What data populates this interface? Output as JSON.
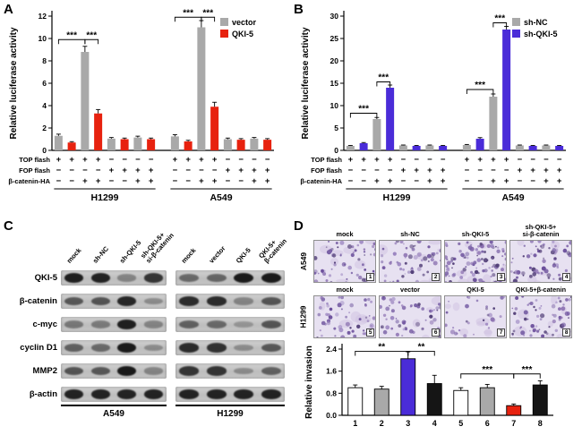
{
  "panelA": {
    "label": "A"
  },
  "panelB": {
    "label": "B"
  },
  "panelC": {
    "label": "C",
    "row_labels": [
      "QKI-5",
      "β-catenin",
      "c-myc",
      "cyclin D1",
      "MMP2",
      "β-actin"
    ],
    "groups": [
      {
        "cell_line": "A549",
        "lane_labels": [
          [
            "mock"
          ],
          [
            "sh-NC"
          ],
          [
            "sh-QKI-5"
          ],
          [
            "sh-QKI-5+",
            "si-β-catenin"
          ]
        ],
        "band_intensity": [
          [
            0.92,
            0.9,
            0.35,
            0.8
          ],
          [
            0.6,
            0.62,
            0.88,
            0.3
          ],
          [
            0.42,
            0.4,
            0.92,
            0.35
          ],
          [
            0.55,
            0.5,
            0.95,
            0.3
          ],
          [
            0.62,
            0.6,
            0.95,
            0.35
          ],
          [
            0.9,
            0.9,
            0.9,
            0.9
          ]
        ]
      },
      {
        "cell_line": "H1299",
        "lane_labels": [
          [
            "mock"
          ],
          [
            "vector"
          ],
          [
            "QKI-5"
          ],
          [
            "QKI-5+",
            "β-catenin"
          ]
        ],
        "band_intensity": [
          [
            0.5,
            0.52,
            0.95,
            0.95
          ],
          [
            0.85,
            0.85,
            0.35,
            0.62
          ],
          [
            0.55,
            0.5,
            0.25,
            0.62
          ],
          [
            0.85,
            0.82,
            0.3,
            0.6
          ],
          [
            0.8,
            0.8,
            0.3,
            0.55
          ],
          [
            0.9,
            0.9,
            0.9,
            0.9
          ]
        ]
      }
    ]
  },
  "panelD": {
    "label": "D",
    "rows": [
      {
        "cell_line": "A549",
        "conditions": [
          [
            "mock"
          ],
          [
            "sh-NC"
          ],
          [
            "sh-QKI-5"
          ],
          [
            "sh-QKI-5+",
            "si-β-catenin"
          ]
        ],
        "numbers": [
          "1",
          "2",
          "3",
          "4"
        ]
      },
      {
        "cell_line": "H1299",
        "conditions": [
          [
            "mock"
          ],
          [
            "vector"
          ],
          [
            "QKI-5"
          ],
          [
            "QKI-5+β-catenin"
          ]
        ],
        "numbers": [
          "5",
          "6",
          "7",
          "8"
        ]
      }
    ]
  },
  "chart_data": [
    {
      "id": "A",
      "type": "bar",
      "ylabel": "Relative luciferase activity",
      "ylim": [
        0,
        12
      ],
      "yticks": [
        0,
        2,
        4,
        6,
        8,
        10,
        12
      ],
      "legend": [
        {
          "name": "vector",
          "color": "#a9a9a9"
        },
        {
          "name": "QKI-5",
          "color": "#e7220f"
        }
      ],
      "group_labels": [
        "H1299",
        "A549"
      ],
      "values": [
        1.3,
        0.7,
        8.8,
        3.3,
        1.05,
        1.0,
        1.15,
        1.0,
        1.25,
        0.8,
        11.0,
        3.9,
        1.0,
        0.95,
        1.05,
        0.95
      ],
      "errors": [
        0.15,
        0.08,
        0.5,
        0.35,
        0.1,
        0.1,
        0.12,
        0.1,
        0.15,
        0.1,
        0.6,
        0.4,
        0.1,
        0.1,
        0.1,
        0.1
      ],
      "condition_rows": [
        {
          "label": "TOP flash",
          "signs": [
            "+",
            "+",
            "+",
            "+",
            "−",
            "−",
            "−",
            "−",
            "+",
            "+",
            "+",
            "+",
            "−",
            "−",
            "−",
            "−"
          ]
        },
        {
          "label": "FOP flash",
          "signs": [
            "−",
            "−",
            "−",
            "−",
            "+",
            "+",
            "+",
            "+",
            "−",
            "−",
            "−",
            "−",
            "+",
            "+",
            "+",
            "+"
          ]
        },
        {
          "label": "β-catenin-HA",
          "signs": [
            "−",
            "−",
            "+",
            "+",
            "−",
            "−",
            "+",
            "+",
            "−",
            "−",
            "+",
            "+",
            "−",
            "−",
            "+",
            "+"
          ]
        }
      ],
      "significance": [
        {
          "from": 0,
          "to": 2,
          "y": 9.9,
          "stars": "***"
        },
        {
          "from": 2,
          "to": 3,
          "y": 9.9,
          "stars": "***"
        },
        {
          "from": 8,
          "to": 10,
          "y": 11.9,
          "stars": "***"
        },
        {
          "from": 10,
          "to": 11,
          "y": 11.9,
          "stars": "***"
        }
      ]
    },
    {
      "id": "B",
      "type": "bar",
      "ylabel": "Relative luciferase activity",
      "ylim": [
        0,
        30
      ],
      "yticks": [
        0,
        5,
        10,
        15,
        20,
        25,
        30
      ],
      "legend": [
        {
          "name": "sh-NC",
          "color": "#a9a9a9"
        },
        {
          "name": "sh-QKI-5",
          "color": "#4a2cd8"
        }
      ],
      "group_labels": [
        "H1299",
        "A549"
      ],
      "values": [
        1.0,
        1.6,
        7.0,
        14.0,
        1.1,
        1.0,
        1.1,
        1.0,
        1.2,
        2.6,
        12.0,
        27.0,
        1.1,
        1.0,
        1.1,
        1.0
      ],
      "errors": [
        0.1,
        0.15,
        0.35,
        0.6,
        0.1,
        0.1,
        0.1,
        0.1,
        0.12,
        0.25,
        0.6,
        0.7,
        0.1,
        0.1,
        0.1,
        0.1
      ],
      "condition_rows": [
        {
          "label": "TOP flash",
          "signs": [
            "+",
            "+",
            "+",
            "+",
            "−",
            "−",
            "−",
            "−",
            "+",
            "+",
            "+",
            "+",
            "−",
            "−",
            "−",
            "−"
          ]
        },
        {
          "label": "FOP flash",
          "signs": [
            "−",
            "−",
            "−",
            "−",
            "+",
            "+",
            "+",
            "+",
            "−",
            "−",
            "−",
            "−",
            "+",
            "+",
            "+",
            "+"
          ]
        },
        {
          "label": "β-catenin-HA",
          "signs": [
            "−",
            "−",
            "+",
            "+",
            "−",
            "−",
            "+",
            "+",
            "−",
            "−",
            "+",
            "+",
            "−",
            "−",
            "+",
            "+"
          ]
        }
      ],
      "significance": [
        {
          "from": 0,
          "to": 2,
          "y": 8.3,
          "stars": "***"
        },
        {
          "from": 2,
          "to": 3,
          "y": 15.3,
          "stars": "***"
        },
        {
          "from": 8,
          "to": 10,
          "y": 13.6,
          "stars": "***"
        },
        {
          "from": 10,
          "to": 11,
          "y": 28.5,
          "stars": "***"
        }
      ]
    },
    {
      "id": "D",
      "type": "bar",
      "ylabel": "Relative invasion",
      "ylim": [
        0,
        2.4
      ],
      "yticks": [
        0,
        0.8,
        1.6,
        2.4
      ],
      "ytick_labels": [
        "0.0",
        "0.8",
        "1.6",
        "2.4"
      ],
      "categories": [
        "1",
        "2",
        "3",
        "4",
        "5",
        "6",
        "7",
        "8"
      ],
      "values": [
        1.0,
        0.95,
        2.05,
        1.15,
        0.9,
        1.0,
        0.35,
        1.1
      ],
      "errors": [
        0.1,
        0.1,
        0.25,
        0.3,
        0.1,
        0.12,
        0.06,
        0.15
      ],
      "bar_colors": [
        "#ffffff",
        "#a9a9a9",
        "#4a2cd8",
        "#151515",
        "#ffffff",
        "#a9a9a9",
        "#e7220f",
        "#151515"
      ],
      "significance": [
        {
          "from": 0,
          "to": 2,
          "y": 2.32,
          "stars": "**"
        },
        {
          "from": 2,
          "to": 3,
          "y": 2.32,
          "stars": "**"
        },
        {
          "from": 4,
          "to": 6,
          "y": 1.5,
          "stars": "***"
        },
        {
          "from": 6,
          "to": 7,
          "y": 1.5,
          "stars": "***"
        }
      ]
    }
  ]
}
